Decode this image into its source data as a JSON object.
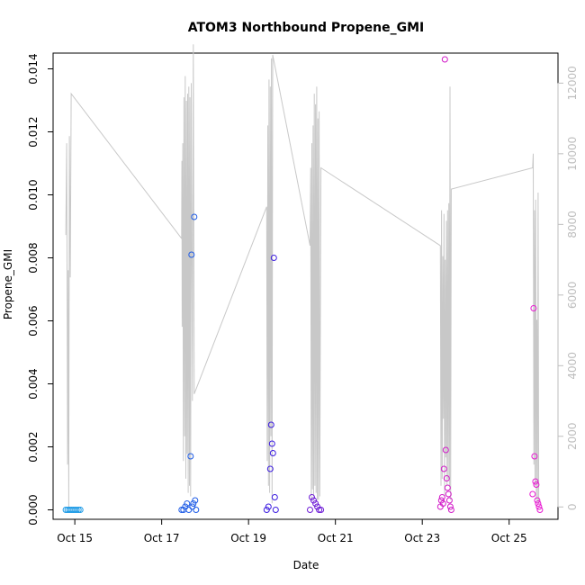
{
  "chart_data": {
    "type": "scatter",
    "title": "ATOM3 Northbound Propene_GMI",
    "xlabel": "Date",
    "ylabel": "Propene_GMI",
    "x_ticks": [
      "Oct 15",
      "Oct 17",
      "Oct 19",
      "Oct 21",
      "Oct 23",
      "Oct 25"
    ],
    "y_ticks": [
      "0.000",
      "0.002",
      "0.004",
      "0.006",
      "0.008",
      "0.010",
      "0.012",
      "0.014"
    ],
    "y2_ticks": [
      "0",
      "2000",
      "4000",
      "6000",
      "8000",
      "10000",
      "12000"
    ],
    "xlim": [
      "Oct 14 12:00",
      "Oct 26 03:00"
    ],
    "ylim": [
      -0.0003,
      0.0145
    ],
    "y2lim": [
      -350,
      12850
    ],
    "grid": false,
    "series": [
      {
        "role": "altitude",
        "type": "line",
        "color": "#c8c8c8",
        "points": [
          [
            "Oct 14 19:00",
            7700
          ],
          [
            "Oct 14 19:30",
            10300
          ],
          [
            "Oct 14 20:00",
            1200
          ],
          [
            "Oct 14 20:20",
            6700
          ],
          [
            "Oct 14 20:40",
            0
          ],
          [
            "Oct 14 21:00",
            10500
          ],
          [
            "Oct 14 21:30",
            6500
          ],
          [
            "Oct 14 22:00",
            11700
          ],
          [
            "Oct 17 11:00",
            7600
          ],
          [
            "Oct 17 11:10",
            9800
          ],
          [
            "Oct 17 11:20",
            5100
          ],
          [
            "Oct 17 11:40",
            10300
          ],
          [
            "Oct 17 12:00",
            1300
          ],
          [
            "Oct 17 12:20",
            11600
          ],
          [
            "Oct 17 12:40",
            2000
          ],
          [
            "Oct 17 13:00",
            12200
          ],
          [
            "Oct 17 13:20",
            800
          ],
          [
            "Oct 17 13:40",
            11500
          ],
          [
            "Oct 17 14:00",
            1500
          ],
          [
            "Oct 17 14:20",
            11700
          ],
          [
            "Oct 17 14:40",
            400
          ],
          [
            "Oct 17 15:00",
            11900
          ],
          [
            "Oct 17 15:20",
            600
          ],
          [
            "Oct 17 15:40",
            11600
          ],
          [
            "Oct 17 16:00",
            300
          ],
          [
            "Oct 17 16:20",
            12000
          ],
          [
            "Oct 17 17:00",
            3000
          ],
          [
            "Oct 17 17:30",
            13100
          ],
          [
            "Oct 17 18:00",
            3200
          ],
          [
            "Oct 19 10:00",
            8500
          ],
          [
            "Oct 19 10:20",
            1300
          ],
          [
            "Oct 19 10:40",
            10800
          ],
          [
            "Oct 19 11:00",
            600
          ],
          [
            "Oct 19 11:20",
            12100
          ],
          [
            "Oct 19 11:40",
            400
          ],
          [
            "Oct 19 12:00",
            11900
          ],
          [
            "Oct 19 12:20",
            2000
          ],
          [
            "Oct 19 12:40",
            12700
          ],
          [
            "Oct 19 13:00",
            100
          ],
          [
            "Oct 19 13:20",
            12800
          ],
          [
            "Oct 20 10:00",
            7400
          ],
          [
            "Oct 20 10:20",
            9600
          ],
          [
            "Oct 20 10:40",
            200
          ],
          [
            "Oct 20 11:00",
            10300
          ],
          [
            "Oct 20 11:20",
            500
          ],
          [
            "Oct 20 11:40",
            10800
          ],
          [
            "Oct 20 12:00",
            300
          ],
          [
            "Oct 20 12:20",
            11700
          ],
          [
            "Oct 20 12:40",
            600
          ],
          [
            "Oct 20 13:00",
            11400
          ],
          [
            "Oct 20 13:20",
            400
          ],
          [
            "Oct 20 13:40",
            11900
          ],
          [
            "Oct 20 14:00",
            200
          ],
          [
            "Oct 20 14:20",
            11000
          ],
          [
            "Oct 20 14:40",
            200
          ],
          [
            "Oct 20 15:00",
            11200
          ],
          [
            "Oct 20 15:20",
            300
          ],
          [
            "Oct 20 16:00",
            9600
          ],
          [
            "Oct 23 10:00",
            7400
          ],
          [
            "Oct 23 10:20",
            600
          ],
          [
            "Oct 23 10:40",
            8400
          ],
          [
            "Oct 23 11:00",
            800
          ],
          [
            "Oct 23 11:20",
            7100
          ],
          [
            "Oct 23 11:40",
            2500
          ],
          [
            "Oct 23 12:00",
            8300
          ],
          [
            "Oct 23 12:20",
            300
          ],
          [
            "Oct 23 12:40",
            7000
          ],
          [
            "Oct 23 13:00",
            1400
          ],
          [
            "Oct 23 13:20",
            8100
          ],
          [
            "Oct 23 13:40",
            600
          ],
          [
            "Oct 23 14:00",
            8400
          ],
          [
            "Oct 23 14:20",
            800
          ],
          [
            "Oct 23 14:40",
            8600
          ],
          [
            "Oct 23 15:00",
            600
          ],
          [
            "Oct 23 15:20",
            11900
          ],
          [
            "Oct 23 15:40",
            200
          ],
          [
            "Oct 23 16:00",
            9000
          ],
          [
            "Oct 25 13:00",
            9600
          ],
          [
            "Oct 25 13:20",
            10000
          ],
          [
            "Oct 25 13:40",
            1200
          ],
          [
            "Oct 25 14:00",
            8400
          ],
          [
            "Oct 25 14:20",
            600
          ],
          [
            "Oct 25 14:40",
            8700
          ],
          [
            "Oct 25 15:00",
            200
          ],
          [
            "Oct 25 15:20",
            5300
          ],
          [
            "Oct 25 15:40",
            100
          ],
          [
            "Oct 25 16:00",
            8900
          ],
          [
            "Oct 25 16:20",
            100
          ]
        ]
      },
      {
        "role": "propene",
        "type": "scatter",
        "points": [
          [
            "Oct 14 19:00",
            0.0,
            "#1e9be6"
          ],
          [
            "Oct 14 20:00",
            0.0,
            "#1e9be6"
          ],
          [
            "Oct 14 21:00",
            0.0,
            "#1e9be6"
          ],
          [
            "Oct 14 22:00",
            0.0,
            "#1e9be6"
          ],
          [
            "Oct 14 23:00",
            0.0,
            "#1e9be6"
          ],
          [
            "Oct 15 00:00",
            0.0,
            "#1e9be6"
          ],
          [
            "Oct 15 01:00",
            0.0,
            "#1e9be6"
          ],
          [
            "Oct 15 02:00",
            0.0,
            "#1e9be6"
          ],
          [
            "Oct 15 03:00",
            0.0,
            "#1e9be6"
          ],
          [
            "Oct 17 11:00",
            0.0,
            "#1d5be6"
          ],
          [
            "Oct 17 12:00",
            0.0,
            "#1d5be6"
          ],
          [
            "Oct 17 13:00",
            0.0001,
            "#1d5be6"
          ],
          [
            "Oct 17 14:00",
            0.0002,
            "#1d5be6"
          ],
          [
            "Oct 17 15:00",
            0.0,
            "#1d5be6"
          ],
          [
            "Oct 17 16:00",
            0.0017,
            "#1d5be6"
          ],
          [
            "Oct 17 16:30",
            0.0081,
            "#1d5be6"
          ],
          [
            "Oct 17 17:00",
            0.0001,
            "#1d5be6"
          ],
          [
            "Oct 17 17:30",
            0.0002,
            "#1d5be6"
          ],
          [
            "Oct 17 18:00",
            0.0093,
            "#1d5be6"
          ],
          [
            "Oct 17 18:30",
            0.0003,
            "#1d5be6"
          ],
          [
            "Oct 17 19:00",
            0.0,
            "#1d5be6"
          ],
          [
            "Oct 19 10:00",
            0.0,
            "#3b1be0"
          ],
          [
            "Oct 19 11:00",
            0.0001,
            "#3b1be0"
          ],
          [
            "Oct 19 12:00",
            0.0013,
            "#3b1be0"
          ],
          [
            "Oct 19 12:30",
            0.0027,
            "#3b1be0"
          ],
          [
            "Oct 19 13:00",
            0.0021,
            "#3b1be0"
          ],
          [
            "Oct 19 13:30",
            0.0018,
            "#3b1be0"
          ],
          [
            "Oct 19 14:00",
            0.008,
            "#3b1be0"
          ],
          [
            "Oct 19 14:30",
            0.0004,
            "#3b1be0"
          ],
          [
            "Oct 19 15:00",
            0.0,
            "#3b1be0"
          ],
          [
            "Oct 20 10:00",
            0.0,
            "#6d1bd6"
          ],
          [
            "Oct 20 11:00",
            0.0004,
            "#6d1bd6"
          ],
          [
            "Oct 20 12:00",
            0.0003,
            "#6d1bd6"
          ],
          [
            "Oct 20 13:00",
            0.0002,
            "#6d1bd6"
          ],
          [
            "Oct 20 14:00",
            0.0001,
            "#6d1bd6"
          ],
          [
            "Oct 20 15:00",
            0.0,
            "#6d1bd6"
          ],
          [
            "Oct 20 16:00",
            0.0,
            "#6d1bd6"
          ],
          [
            "Oct 23 10:00",
            0.0001,
            "#d21bc8"
          ],
          [
            "Oct 23 10:30",
            0.0003,
            "#d21bc8"
          ],
          [
            "Oct 23 11:00",
            0.0004,
            "#d21bc8"
          ],
          [
            "Oct 23 11:30",
            0.0002,
            "#d21bc8"
          ],
          [
            "Oct 23 12:00",
            0.0013,
            "#d21bc8"
          ],
          [
            "Oct 23 12:30",
            0.0143,
            "#d21bc8"
          ],
          [
            "Oct 23 13:00",
            0.0019,
            "#d21bc8"
          ],
          [
            "Oct 23 13:30",
            0.001,
            "#d21bc8"
          ],
          [
            "Oct 23 14:00",
            0.0007,
            "#d21bc8"
          ],
          [
            "Oct 23 14:30",
            0.0005,
            "#d21bc8"
          ],
          [
            "Oct 23 15:00",
            0.0003,
            "#d21bc8"
          ],
          [
            "Oct 23 15:30",
            0.0001,
            "#d21bc8"
          ],
          [
            "Oct 23 16:00",
            0.0,
            "#d21bc8"
          ],
          [
            "Oct 25 13:00",
            0.0005,
            "#e81bd2"
          ],
          [
            "Oct 25 13:30",
            0.0064,
            "#e81bd2"
          ],
          [
            "Oct 25 14:00",
            0.0017,
            "#e81bd2"
          ],
          [
            "Oct 25 14:30",
            0.0009,
            "#e81bd2"
          ],
          [
            "Oct 25 15:00",
            0.0008,
            "#e81bd2"
          ],
          [
            "Oct 25 15:30",
            0.0003,
            "#e81bd2"
          ],
          [
            "Oct 25 16:00",
            0.0002,
            "#e81bd2"
          ],
          [
            "Oct 25 16:30",
            0.0001,
            "#e81bd2"
          ],
          [
            "Oct 25 17:00",
            0.0,
            "#e81bd2"
          ]
        ]
      }
    ]
  }
}
